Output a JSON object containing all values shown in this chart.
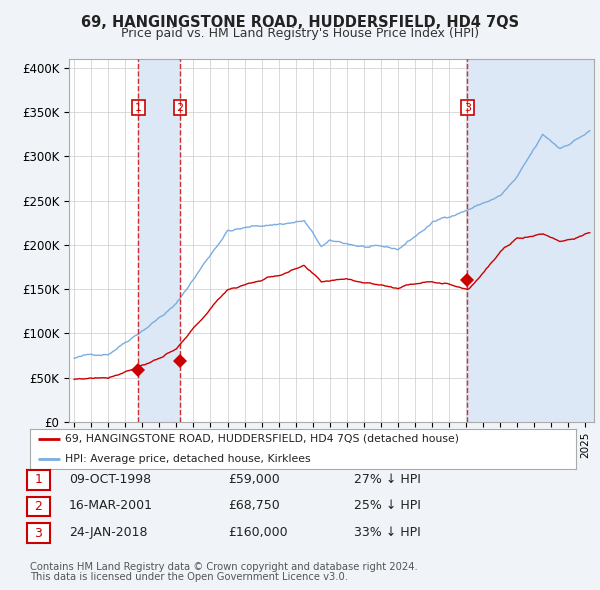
{
  "title": "69, HANGINGSTONE ROAD, HUDDERSFIELD, HD4 7QS",
  "subtitle": "Price paid vs. HM Land Registry's House Price Index (HPI)",
  "legend_line1": "69, HANGINGSTONE ROAD, HUDDERSFIELD, HD4 7QS (detached house)",
  "legend_line2": "HPI: Average price, detached house, Kirklees",
  "footer1": "Contains HM Land Registry data © Crown copyright and database right 2024.",
  "footer2": "This data is licensed under the Open Government Licence v3.0.",
  "transactions": [
    {
      "num": 1,
      "date": "09-OCT-1998",
      "price": 59000,
      "year": 1998.77,
      "hpi_pct": "27% ↓ HPI"
    },
    {
      "num": 2,
      "date": "16-MAR-2001",
      "price": 68750,
      "year": 2001.21,
      "hpi_pct": "25% ↓ HPI"
    },
    {
      "num": 3,
      "date": "24-JAN-2018",
      "price": 160000,
      "year": 2018.07,
      "hpi_pct": "33% ↓ HPI"
    }
  ],
  "ylim": [
    0,
    410000
  ],
  "xlim": [
    1994.7,
    2025.5
  ],
  "yticks": [
    0,
    50000,
    100000,
    150000,
    200000,
    250000,
    300000,
    350000,
    400000
  ],
  "ytick_labels": [
    "£0",
    "£50K",
    "£100K",
    "£150K",
    "£200K",
    "£250K",
    "£300K",
    "£350K",
    "£400K"
  ],
  "background_color": "#f0f4f8",
  "plot_bg_color": "#ffffff",
  "red_color": "#cc0000",
  "blue_color": "#7aade0",
  "shade_color": "#dce8f5",
  "grid_color": "#cccccc"
}
